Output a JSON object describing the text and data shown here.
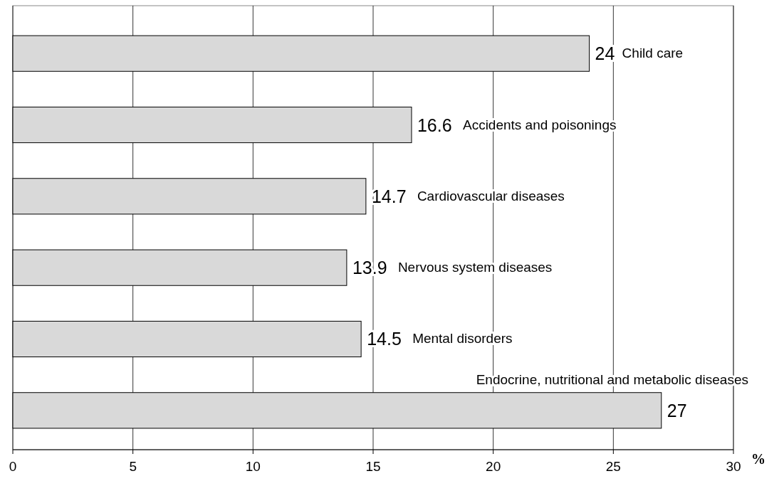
{
  "chart_data": {
    "type": "bar",
    "orientation": "horizontal",
    "categories": [
      "Child care",
      "Accidents and poisonings",
      "Cardiovascular diseases",
      "Nervous system diseases",
      "Mental disorders",
      "Endocrine, nutritional and metabolic diseases"
    ],
    "values": [
      24,
      16.6,
      14.7,
      13.9,
      14.5,
      27
    ],
    "color": "#d9d9d9",
    "xlim": [
      0,
      30
    ],
    "xticks": [
      0,
      5,
      10,
      15,
      20,
      25,
      30
    ],
    "xlabel": "%",
    "grid": "x",
    "data_labels": true
  }
}
